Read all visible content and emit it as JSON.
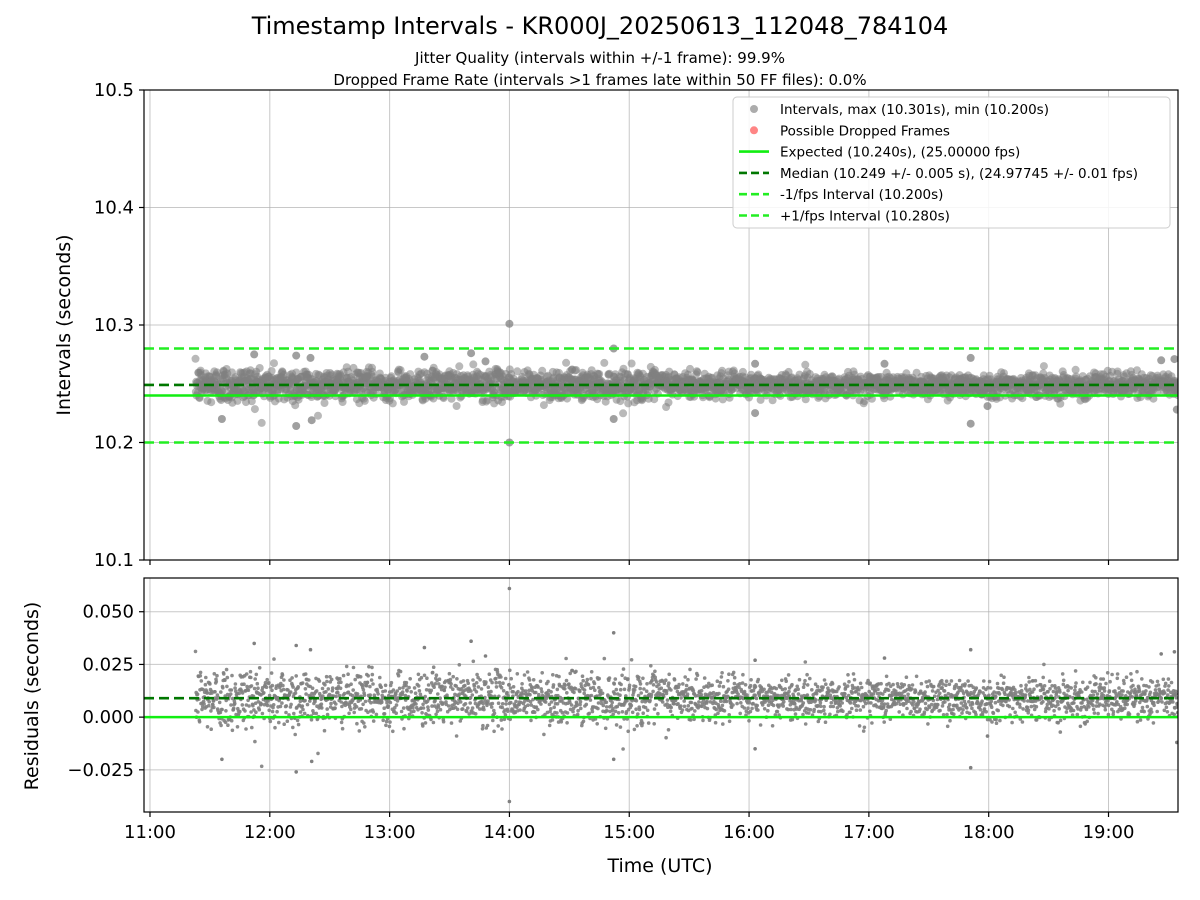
{
  "header": {
    "title": "Timestamp Intervals - KR000J_20250613_112048_784104",
    "subtitle1": "Jitter Quality (intervals within +/-1 frame): 99.9%",
    "subtitle2": "Dropped Frame Rate (intervals >1 frames late within 50 FF files): 0.0%"
  },
  "colors": {
    "points": "#808080",
    "dropped": "#ff4444",
    "expected": "#11ee11",
    "median": "#007700",
    "fps_bounds": "#22ee22",
    "grid": "#b0b0b0"
  },
  "chart_data": [
    {
      "type": "scatter",
      "panel": "intervals",
      "ylabel": "Intervals (seconds)",
      "xlabel": "",
      "xlim": [
        10.95,
        19.58
      ],
      "ylim": [
        10.1,
        10.5
      ],
      "y_ticks": [
        10.1,
        10.2,
        10.3,
        10.4,
        10.5
      ],
      "y_tick_labels": [
        "10.1",
        "10.2",
        "10.3",
        "10.4",
        "10.5"
      ],
      "x_ticks": [
        11,
        12,
        13,
        14,
        15,
        16,
        17,
        18,
        19
      ],
      "grid": true,
      "legend_position": "top-right",
      "legend": [
        {
          "label": "Intervals, max (10.301s), min (10.200s)",
          "kind": "marker",
          "color": "#808080"
        },
        {
          "label": "Possible Dropped Frames",
          "kind": "marker",
          "color": "#ff4444"
        },
        {
          "label": "Expected (10.240s), (25.00000 fps)",
          "kind": "solid",
          "color": "#11ee11"
        },
        {
          "label": "Median (10.249 +/- 0.005 s), (24.97745 +/- 0.01 fps)",
          "kind": "dashed",
          "color": "#007700"
        },
        {
          "label": "-1/fps Interval (10.200s)",
          "kind": "dashed",
          "color": "#22ee22"
        },
        {
          "label": "+1/fps Interval (10.280s)",
          "kind": "dashed",
          "color": "#22ee22"
        }
      ],
      "reference_lines": [
        {
          "name": "expected",
          "y": 10.24,
          "style": "solid",
          "color": "#11ee11"
        },
        {
          "name": "median",
          "y": 10.249,
          "style": "dashed",
          "color": "#007700"
        },
        {
          "name": "minus_one_fps",
          "y": 10.2,
          "style": "dashed",
          "color": "#22ee22"
        },
        {
          "name": "plus_one_fps",
          "y": 10.28,
          "style": "dashed",
          "color": "#22ee22"
        }
      ],
      "series": [
        {
          "name": "Intervals, max (10.301s), min (10.200s)",
          "x_range": [
            11.38,
            19.58
          ],
          "y_median": 10.249,
          "y_spread": 0.005,
          "count": 2880,
          "outliers": [
            {
              "x": 11.87,
              "y": 10.275
            },
            {
              "x": 12.22,
              "y": 10.274
            },
            {
              "x": 12.34,
              "y": 10.272
            },
            {
              "x": 13.29,
              "y": 10.273
            },
            {
              "x": 13.68,
              "y": 10.276
            },
            {
              "x": 13.8,
              "y": 10.269
            },
            {
              "x": 14.0,
              "y": 10.301
            },
            {
              "x": 14.87,
              "y": 10.28
            },
            {
              "x": 16.05,
              "y": 10.267
            },
            {
              "x": 17.13,
              "y": 10.267
            },
            {
              "x": 17.85,
              "y": 10.272
            },
            {
              "x": 19.44,
              "y": 10.27
            },
            {
              "x": 19.55,
              "y": 10.271
            },
            {
              "x": 11.6,
              "y": 10.22
            },
            {
              "x": 12.22,
              "y": 10.214
            },
            {
              "x": 12.35,
              "y": 10.219
            },
            {
              "x": 14.0,
              "y": 10.2
            },
            {
              "x": 14.87,
              "y": 10.22
            },
            {
              "x": 16.05,
              "y": 10.225
            },
            {
              "x": 17.85,
              "y": 10.216
            },
            {
              "x": 17.99,
              "y": 10.231
            },
            {
              "x": 19.57,
              "y": 10.228
            }
          ]
        }
      ]
    },
    {
      "type": "scatter",
      "panel": "residuals",
      "ylabel": "Residuals (seconds)",
      "xlabel": "Time (UTC)",
      "xlim": [
        10.95,
        19.58
      ],
      "ylim": [
        -0.045,
        0.066
      ],
      "y_ticks": [
        -0.025,
        0.0,
        0.025,
        0.05
      ],
      "y_tick_labels": [
        "−0.025",
        "0.000",
        "0.025",
        "0.050"
      ],
      "x_ticks": [
        11,
        12,
        13,
        14,
        15,
        16,
        17,
        18,
        19
      ],
      "x_tick_labels": [
        "11:00",
        "12:00",
        "13:00",
        "14:00",
        "15:00",
        "16:00",
        "17:00",
        "18:00",
        "19:00"
      ],
      "grid": true,
      "reference_lines": [
        {
          "name": "expected",
          "y": 0.0,
          "style": "solid",
          "color": "#11ee11"
        },
        {
          "name": "median",
          "y": 0.009,
          "style": "dashed",
          "color": "#007700"
        }
      ],
      "series": [
        {
          "name": "Residuals",
          "x_range": [
            11.38,
            19.58
          ],
          "y_median": 0.009,
          "y_spread": 0.005,
          "count": 2880,
          "outliers": [
            {
              "x": 11.87,
              "y": 0.035
            },
            {
              "x": 12.22,
              "y": 0.034
            },
            {
              "x": 12.34,
              "y": 0.032
            },
            {
              "x": 13.29,
              "y": 0.033
            },
            {
              "x": 13.68,
              "y": 0.036
            },
            {
              "x": 13.8,
              "y": 0.029
            },
            {
              "x": 14.0,
              "y": 0.061
            },
            {
              "x": 14.87,
              "y": 0.04
            },
            {
              "x": 16.05,
              "y": 0.027
            },
            {
              "x": 17.13,
              "y": 0.028
            },
            {
              "x": 17.85,
              "y": 0.032
            },
            {
              "x": 19.44,
              "y": 0.03
            },
            {
              "x": 19.55,
              "y": 0.031
            },
            {
              "x": 11.6,
              "y": -0.02
            },
            {
              "x": 12.22,
              "y": -0.026
            },
            {
              "x": 12.35,
              "y": -0.021
            },
            {
              "x": 14.0,
              "y": -0.04
            },
            {
              "x": 14.87,
              "y": -0.02
            },
            {
              "x": 16.05,
              "y": -0.015
            },
            {
              "x": 17.85,
              "y": -0.024
            },
            {
              "x": 17.99,
              "y": -0.009
            },
            {
              "x": 19.57,
              "y": -0.012
            }
          ]
        }
      ]
    }
  ]
}
